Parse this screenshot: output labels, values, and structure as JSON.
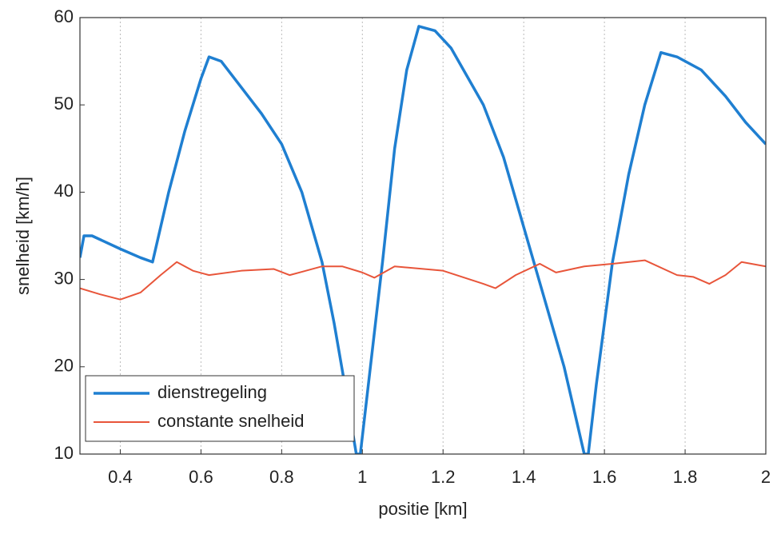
{
  "chart_data": {
    "type": "line",
    "xlabel": "positie [km]",
    "ylabel": "snelheid [km/h]",
    "xlim": [
      0.3,
      2
    ],
    "xticks": [
      0.4,
      0.6,
      0.8,
      1,
      1.2,
      1.4,
      1.6,
      1.8,
      2
    ],
    "ylim": [
      10,
      60
    ],
    "yticks": [
      10,
      20,
      30,
      40,
      50,
      60
    ],
    "grid": "x",
    "legend": "lower left",
    "series": [
      {
        "name": "dienstregeling",
        "color": "#1f7fd1",
        "x": [
          0.3,
          0.31,
          0.33,
          0.4,
          0.45,
          0.48,
          0.52,
          0.56,
          0.6,
          0.62,
          0.65,
          0.7,
          0.75,
          0.8,
          0.85,
          0.9,
          0.93,
          0.96,
          0.985,
          0.995,
          1.02,
          1.05,
          1.08,
          1.11,
          1.14,
          1.18,
          1.22,
          1.3,
          1.35,
          1.4,
          1.45,
          1.5,
          1.53,
          1.55,
          1.56,
          1.58,
          1.62,
          1.66,
          1.7,
          1.74,
          1.78,
          1.84,
          1.9,
          1.95,
          2
        ],
        "values": [
          32.5,
          35,
          35,
          33.5,
          32.5,
          32,
          40,
          47,
          53,
          55.5,
          55,
          52,
          49,
          45.5,
          40,
          32,
          25,
          17,
          10,
          10,
          20,
          32,
          45,
          54,
          59,
          58.5,
          56.5,
          50,
          44,
          36,
          28,
          20,
          14,
          10,
          10,
          18,
          32,
          42,
          50,
          56,
          55.5,
          54,
          51,
          48,
          45.5
        ]
      },
      {
        "name": "constante snelheid",
        "color": "#e8553a",
        "x": [
          0.3,
          0.35,
          0.4,
          0.45,
          0.5,
          0.54,
          0.58,
          0.62,
          0.7,
          0.78,
          0.82,
          0.9,
          0.95,
          1.0,
          1.03,
          1.08,
          1.2,
          1.3,
          1.33,
          1.38,
          1.44,
          1.48,
          1.55,
          1.62,
          1.7,
          1.78,
          1.82,
          1.86,
          1.9,
          1.94,
          2
        ],
        "values": [
          29,
          28.3,
          27.7,
          28.5,
          30.5,
          32,
          31,
          30.5,
          31,
          31.2,
          30.5,
          31.5,
          31.5,
          30.8,
          30.2,
          31.5,
          31,
          29.5,
          29,
          30.5,
          31.8,
          30.8,
          31.5,
          31.8,
          32.2,
          30.5,
          30.3,
          29.5,
          30.5,
          32,
          31.5
        ]
      }
    ]
  }
}
